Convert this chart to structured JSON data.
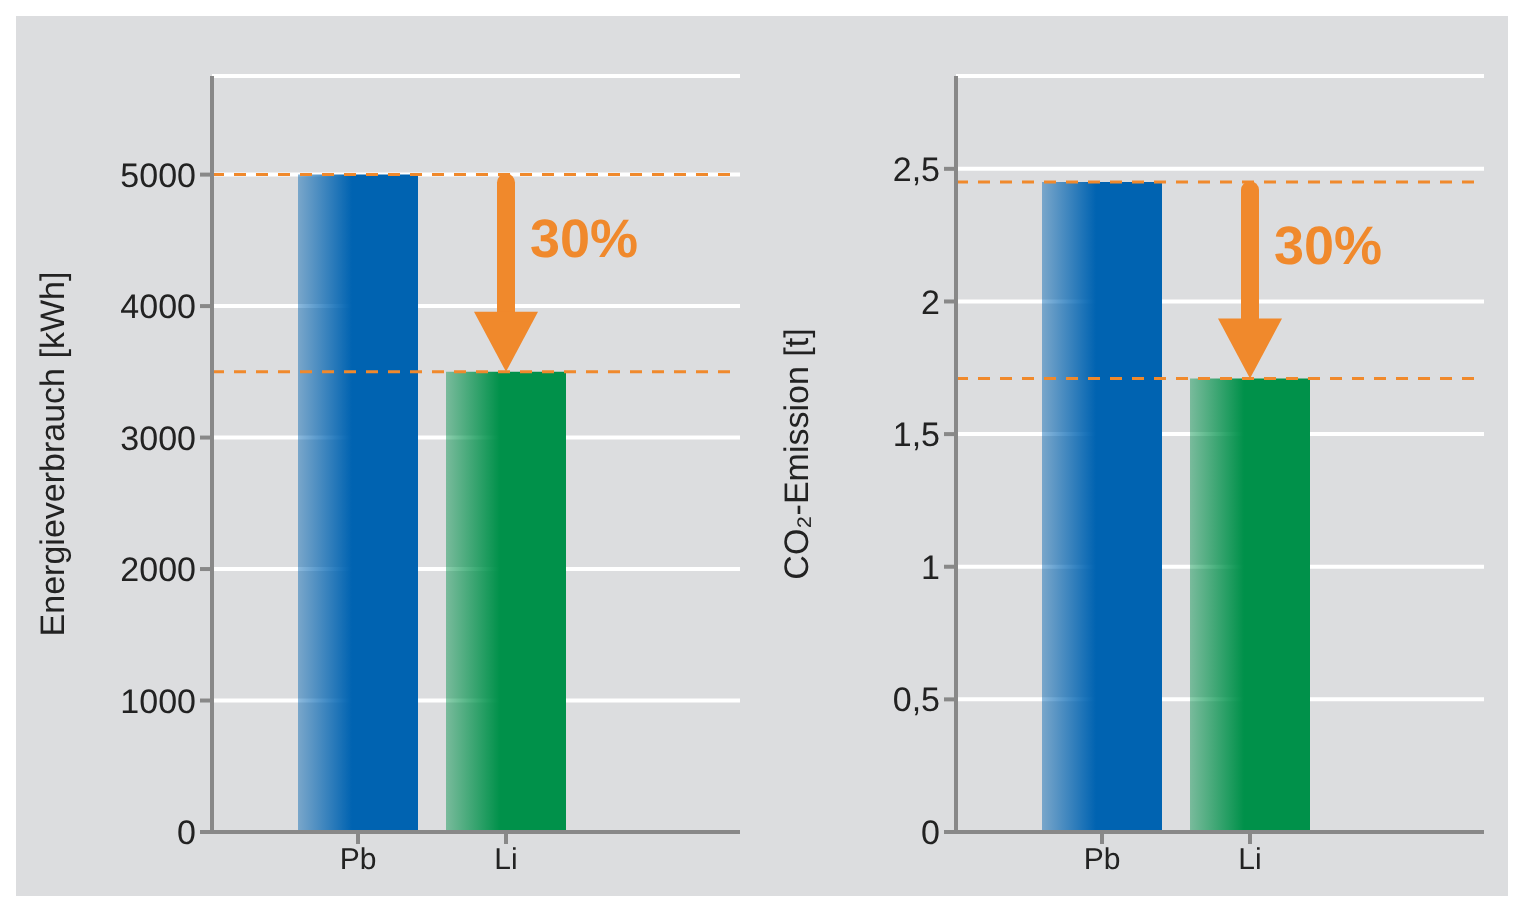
{
  "chart_data": [
    {
      "type": "bar",
      "categories": [
        "Pb",
        "Li"
      ],
      "values": [
        5000,
        3500
      ],
      "colors": [
        "#0063b1",
        "#00914a"
      ],
      "ylabel": "Energieverbrauch [kWh]",
      "ylim": [
        0,
        5750
      ],
      "yticks": [
        0,
        1000,
        2000,
        3000,
        4000,
        5000
      ],
      "grid": "y",
      "legend": false,
      "ref_lines": [
        {
          "axis": "y",
          "value": 5000,
          "color": "#f0892c",
          "line_style": "dashed"
        },
        {
          "axis": "y",
          "value": 3500,
          "color": "#f0892c",
          "line_style": "dashed"
        }
      ],
      "annotations": [
        "30%"
      ]
    },
    {
      "type": "bar",
      "categories": [
        "Pb",
        "Li"
      ],
      "values": [
        2.45,
        1.71
      ],
      "colors": [
        "#0063b1",
        "#00914a"
      ],
      "ylabel": "CO₂-Emission [t]",
      "ylim": [
        0,
        2.85
      ],
      "yticks": [
        0,
        {
          "value": 0.5,
          "label": "0,5"
        },
        1,
        {
          "value": 1.5,
          "label": "1,5"
        },
        2,
        {
          "value": 2.5,
          "label": "2,5"
        }
      ],
      "grid": "y",
      "legend": false,
      "ref_lines": [
        {
          "axis": "y",
          "value": 2.45,
          "color": "#f0892c",
          "line_style": "dashed"
        },
        {
          "axis": "y",
          "value": 1.71,
          "color": "#f0892c",
          "line_style": "dashed"
        }
      ],
      "annotations": [
        "30%"
      ]
    }
  ]
}
